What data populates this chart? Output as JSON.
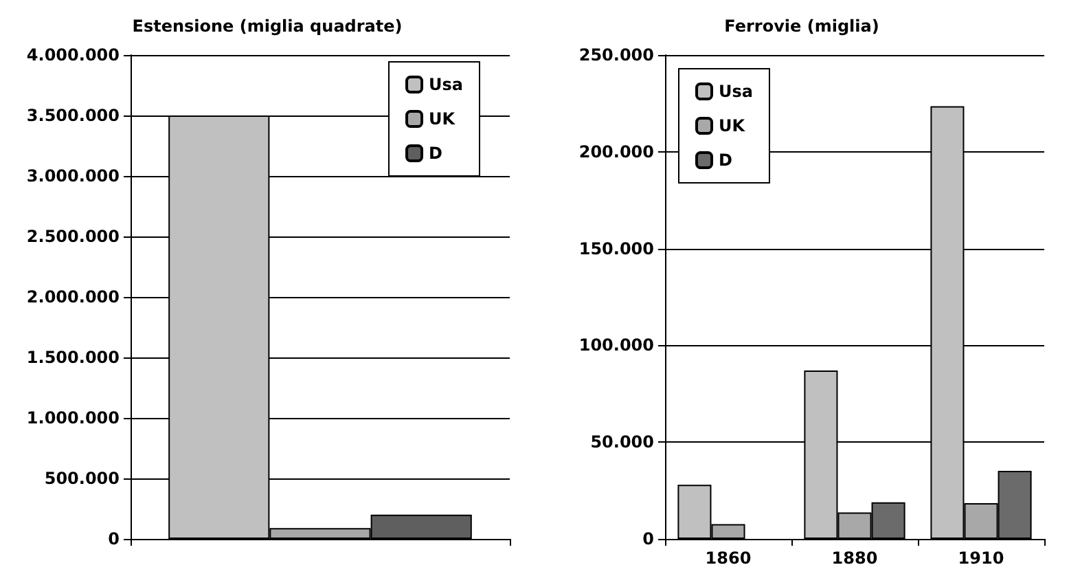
{
  "chart_data": [
    {
      "type": "bar",
      "title": "Estensione (miglia quadrate)",
      "categories": [
        null
      ],
      "series": [
        {
          "name": "Usa",
          "color": "#c0c0c0",
          "values": [
            3500000
          ]
        },
        {
          "name": "UK",
          "color": "#a8a8a8",
          "values": [
            90000
          ]
        },
        {
          "name": "D",
          "color": "#5f5f5f",
          "values": [
            200000
          ]
        }
      ],
      "ylim": [
        0,
        4000000
      ],
      "yticks": [
        {
          "value": 0,
          "label": "0"
        },
        {
          "value": 500000,
          "label": "500.000"
        },
        {
          "value": 1000000,
          "label": "1.000.000"
        },
        {
          "value": 1500000,
          "label": "1.500.000"
        },
        {
          "value": 2000000,
          "label": "2.000.000"
        },
        {
          "value": 2500000,
          "label": "2.500.000"
        },
        {
          "value": 3000000,
          "label": "3.000.000"
        },
        {
          "value": 3500000,
          "label": "3.500.000"
        },
        {
          "value": 4000000,
          "label": "4.000.000"
        }
      ],
      "grid": "y",
      "legend": "top right"
    },
    {
      "type": "bar",
      "title": "Ferrovie (miglia)",
      "categories": [
        "1860",
        "1880",
        "1910"
      ],
      "series": [
        {
          "name": "Usa",
          "color": "#c0c0c0",
          "values": [
            28000,
            87000,
            223500
          ]
        },
        {
          "name": "UK",
          "color": "#a8a8a8",
          "values": [
            7600,
            13700,
            18500
          ]
        },
        {
          "name": "D",
          "color": "#6b6b6b",
          "values": [
            null,
            18900,
            35200
          ]
        }
      ],
      "ylim": [
        0,
        250000
      ],
      "yticks": [
        {
          "value": 0,
          "label": "0"
        },
        {
          "value": 50000,
          "label": "50.000"
        },
        {
          "value": 100000,
          "label": "100.000"
        },
        {
          "value": 150000,
          "label": "150.000"
        },
        {
          "value": 200000,
          "label": "200.000"
        },
        {
          "value": 250000,
          "label": "250.000"
        }
      ],
      "grid": "y",
      "legend": "top left"
    }
  ]
}
